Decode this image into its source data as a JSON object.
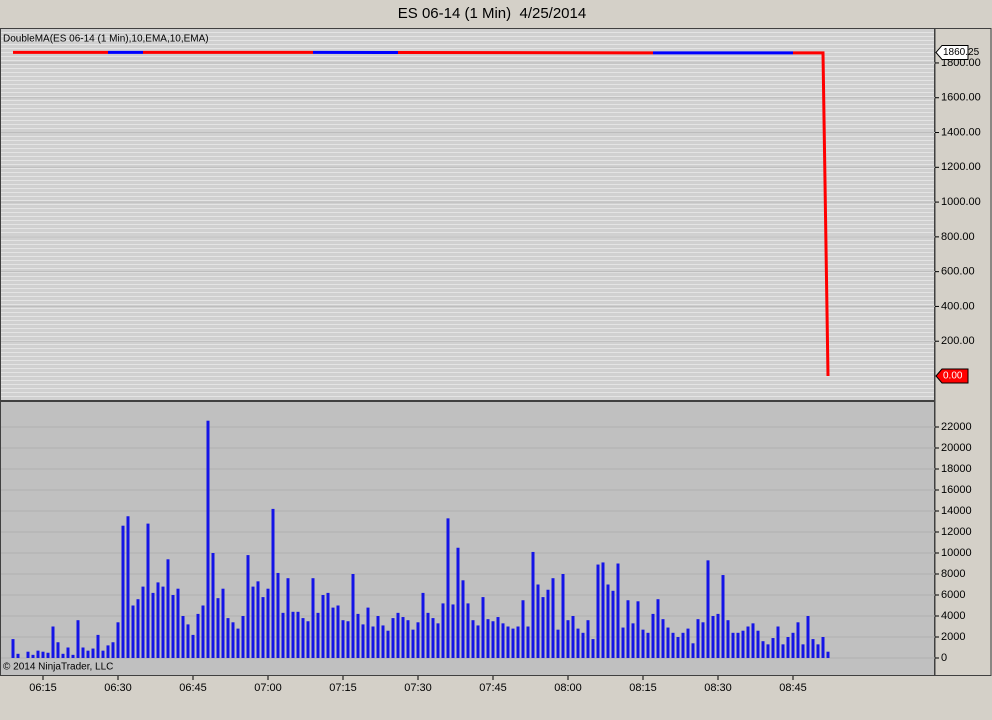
{
  "window_title": "ES 06-14 (1 Min)  4/25/2014",
  "copyright": "© 2014 NinjaTrader, LLC",
  "chart_data": [
    {
      "type": "line",
      "label": "DoubleMA(ES 06-14 (1 Min),10,EMA,10,EMA)",
      "xlim": [
        -2.6,
        184.4
      ],
      "ylim": [
        -138,
        2001
      ],
      "yticks": [
        {
          "value": 200,
          "label": "200.00"
        },
        {
          "value": 400,
          "label": "400.00"
        },
        {
          "value": 600,
          "label": "600.00"
        },
        {
          "value": 800,
          "label": "800.00"
        },
        {
          "value": 1000,
          "label": "1000.00"
        },
        {
          "value": 1200,
          "label": "1200.00"
        },
        {
          "value": 1400,
          "label": "1400.00"
        },
        {
          "value": 1600,
          "label": "1600.00"
        },
        {
          "value": 1800,
          "label": "1800.00"
        }
      ],
      "grid": true,
      "series": [
        {
          "color": "#ff0000",
          "x": [
            0,
            19,
            null,
            26,
            60,
            null,
            77,
            128,
            null,
            156,
            162,
            163
          ],
          "values": [
            1861,
            1861,
            null,
            1861,
            1861,
            null,
            1860,
            1858,
            null,
            1858,
            1858,
            0
          ]
        },
        {
          "color": "#0000ff",
          "x": [
            19,
            26,
            null,
            60,
            77,
            null,
            128,
            156
          ],
          "values": [
            1861,
            1861,
            null,
            1861,
            1860,
            null,
            1858,
            1858
          ]
        }
      ],
      "price_markers": [
        {
          "value": 1860.25,
          "label": "1860.25",
          "color": "#ffffff"
        },
        {
          "value": 0,
          "label": "0.00",
          "color": "#ff0000"
        }
      ]
    },
    {
      "type": "bar",
      "color": "#1414e6",
      "xlim": [
        -2.6,
        184.4
      ],
      "ylim": [
        -1619,
        24476
      ],
      "yticks": [
        0,
        2000,
        4000,
        6000,
        8000,
        10000,
        12000,
        14000,
        16000,
        18000,
        20000,
        22000
      ],
      "grid": true,
      "xticks": [
        {
          "value": 6,
          "label": "06:15"
        },
        {
          "value": 21,
          "label": "06:30"
        },
        {
          "value": 36,
          "label": "06:45"
        },
        {
          "value": 51,
          "label": "07:00"
        },
        {
          "value": 66,
          "label": "07:15"
        },
        {
          "value": 81,
          "label": "07:30"
        },
        {
          "value": 96,
          "label": "07:45"
        },
        {
          "value": 111,
          "label": "08:00"
        },
        {
          "value": 126,
          "label": "08:15"
        },
        {
          "value": 141,
          "label": "08:30"
        },
        {
          "value": 156,
          "label": "08:45"
        }
      ],
      "values": [
        1800,
        400,
        0,
        600,
        300,
        700,
        600,
        500,
        3000,
        1500,
        400,
        1000,
        300,
        3600,
        1000,
        700,
        900,
        2200,
        700,
        1200,
        1500,
        3400,
        12600,
        13500,
        5000,
        5600,
        6800,
        12800,
        6200,
        7200,
        6800,
        9400,
        6000,
        6600,
        4000,
        3200,
        2200,
        4200,
        5000,
        22600,
        10000,
        5700,
        6600,
        3800,
        3400,
        2800,
        4000,
        9800,
        6800,
        7300,
        5800,
        6600,
        14200,
        8100,
        4300,
        7600,
        4400,
        4400,
        3800,
        3500,
        7600,
        4300,
        6000,
        6200,
        4800,
        5000,
        3600,
        3500,
        8000,
        4200,
        3200,
        4800,
        3000,
        4000,
        3100,
        2600,
        3800,
        4300,
        3900,
        3600,
        2700,
        3400,
        6200,
        4300,
        3800,
        3300,
        5200,
        13300,
        5100,
        10500,
        7400,
        5200,
        3600,
        3100,
        5800,
        3700,
        3500,
        3900,
        3300,
        3000,
        2800,
        3000,
        5500,
        3000,
        10100,
        7000,
        5800,
        6500,
        7600,
        2700,
        8000,
        3600,
        4000,
        2800,
        2400,
        3600,
        1800,
        8900,
        9100,
        7000,
        6400,
        9000,
        2900,
        5500,
        3300,
        5400,
        2700,
        2400,
        4200,
        5600,
        3700,
        2900,
        2400,
        2000,
        2400,
        2800,
        1400,
        3700,
        3400,
        9300,
        4000,
        4200,
        7900,
        3600,
        2400,
        2400,
        2600,
        3000,
        3300,
        2600,
        1600,
        1300,
        1900,
        3000,
        1300,
        2000,
        2400,
        3400,
        1300,
        4000,
        1800,
        1300,
        2000,
        600
      ]
    }
  ]
}
